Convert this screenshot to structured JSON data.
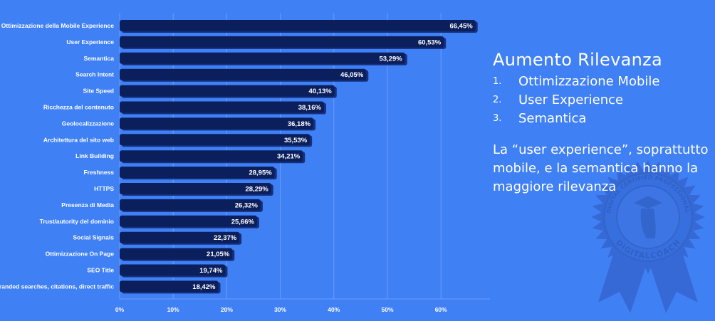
{
  "chart_data": {
    "type": "bar",
    "orientation": "horizontal",
    "categories": [
      "Ottimizzazione della Mobile Experience",
      "User Experience",
      "Semantica",
      "Search Intent",
      "Site Speed",
      "Ricchezza del contenuto",
      "Geolocalizzazione",
      "Architettura del sito web",
      "Link Building",
      "Freshness",
      "HTTPS",
      "Presenza di Media",
      "Trust/autority del dominio",
      "Social Signals",
      "Ottimizzazione On Page",
      "SEO Title",
      "Brand: branded searches, citations, direct traffic"
    ],
    "values": [
      66.45,
      60.53,
      53.29,
      46.05,
      40.13,
      38.16,
      36.18,
      35.53,
      34.21,
      28.95,
      28.29,
      26.32,
      25.66,
      22.37,
      21.05,
      19.74,
      18.42
    ],
    "value_labels": [
      "66,45%",
      "60,53%",
      "53,29%",
      "46,05%",
      "40,13%",
      "38,16%",
      "36,18%",
      "35,53%",
      "34,21%",
      "28,95%",
      "28,29%",
      "26,32%",
      "25,66%",
      "22,37%",
      "21,05%",
      "19,74%",
      "18,42%"
    ],
    "xticks": [
      "0%",
      "10%",
      "20%",
      "30%",
      "40%",
      "50%",
      "60%"
    ],
    "xlim": [
      0,
      68
    ],
    "grid": true,
    "bar_color": "#0b1f5c"
  },
  "side": {
    "title": "Aumento Rilevanza",
    "items": [
      {
        "n": "1.",
        "label": "Ottimizzazione Mobile"
      },
      {
        "n": "2.",
        "label": "User Experience"
      },
      {
        "n": "3.",
        "label": "Semantica"
      }
    ],
    "note": "La “user experience”, soprattutto mobile,  e la semantica hanno la maggiore rilevanza"
  },
  "badge": {
    "top_text": "DIGITAL CERTIFIED PROFESSIONAL",
    "bottom_text": "DIGITALCOACH"
  }
}
